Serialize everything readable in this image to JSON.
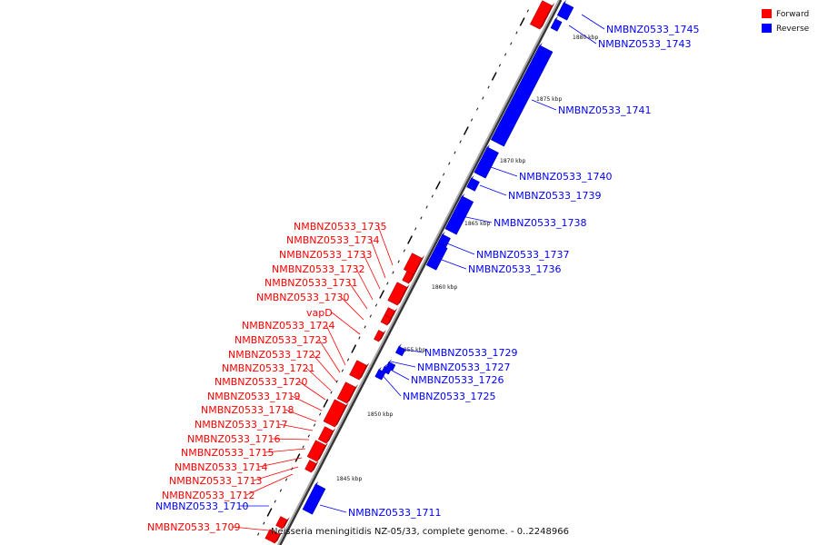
{
  "legend": {
    "forward_label": "Forward",
    "reverse_label": "Reverse",
    "forward_color": "#ff0000",
    "reverse_color": "#0000ff"
  },
  "caption": "Neisseria meningitidis NZ-05/33, complete genome. - 0..2248966",
  "kbp_labels": [
    "1880 kbp",
    "1875 kbp",
    "1870 kbp",
    "1865 kbp",
    "1860 kbp",
    "1855 kbp",
    "1850 kbp",
    "1845 kbp"
  ],
  "forward_genes": [
    "NMBNZ0533_1735",
    "NMBNZ0533_1734",
    "NMBNZ0533_1733",
    "NMBNZ0533_1732",
    "NMBNZ0533_1731",
    "NMBNZ0533_1730",
    "vapD",
    "NMBNZ0533_1724",
    "NMBNZ0533_1723",
    "NMBNZ0533_1722",
    "NMBNZ0533_1721",
    "NMBNZ0533_1720",
    "NMBNZ0533_1719",
    "NMBNZ0533_1718",
    "NMBNZ0533_1717",
    "NMBNZ0533_1716",
    "NMBNZ0533_1715",
    "NMBNZ0533_1714",
    "NMBNZ0533_1713",
    "NMBNZ0533_1712",
    "NMBNZ0533_1709"
  ],
  "reverse_genes": [
    "NMBNZ0533_1745",
    "NMBNZ0533_1743",
    "NMBNZ0533_1741",
    "NMBNZ0533_1740",
    "NMBNZ0533_1739",
    "NMBNZ0533_1738",
    "NMBNZ0533_1737",
    "NMBNZ0533_1736",
    "NMBNZ0533_1729",
    "NMBNZ0533_1727",
    "NMBNZ0533_1726",
    "NMBNZ0533_1725",
    "NMBNZ0533_1710",
    "NMBNZ0533_1711"
  ]
}
